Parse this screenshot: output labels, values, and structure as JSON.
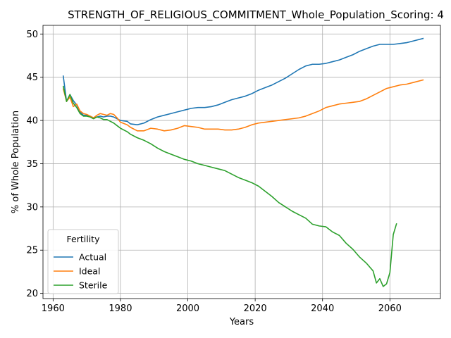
{
  "chart_data": {
    "type": "line",
    "title": "STRENGTH_OF_RELIGIOUS_COMMITMENT_Whole_Population_Scoring: 4",
    "xlabel": "Years",
    "ylabel": "% of Whole Population",
    "xlim": [
      1957,
      2075
    ],
    "ylim": [
      19.4,
      51.0
    ],
    "xticks": [
      1960,
      1980,
      2000,
      2020,
      2040,
      2060
    ],
    "yticks": [
      20,
      25,
      30,
      35,
      40,
      45,
      50
    ],
    "grid": true,
    "legend": {
      "title": "Fertility",
      "placement": "lower-left"
    },
    "series": [
      {
        "name": "Actual",
        "color": "#1f77b4",
        "points": [
          [
            1963,
            45.2
          ],
          [
            1964,
            42.2
          ],
          [
            1965,
            43.0
          ],
          [
            1966,
            42.3
          ],
          [
            1967,
            41.8
          ],
          [
            1968,
            41.0
          ],
          [
            1969,
            40.6
          ],
          [
            1970,
            40.6
          ],
          [
            1971,
            40.5
          ],
          [
            1972,
            40.3
          ],
          [
            1973,
            40.4
          ],
          [
            1974,
            40.5
          ],
          [
            1975,
            40.4
          ],
          [
            1976,
            40.5
          ],
          [
            1977,
            40.5
          ],
          [
            1978,
            40.4
          ],
          [
            1979,
            40.2
          ],
          [
            1980,
            40.0
          ],
          [
            1982,
            39.9
          ],
          [
            1983,
            39.6
          ],
          [
            1985,
            39.5
          ],
          [
            1987,
            39.7
          ],
          [
            1989,
            40.1
          ],
          [
            1991,
            40.4
          ],
          [
            1993,
            40.6
          ],
          [
            1995,
            40.8
          ],
          [
            1997,
            41.0
          ],
          [
            1999,
            41.2
          ],
          [
            2001,
            41.4
          ],
          [
            2003,
            41.5
          ],
          [
            2005,
            41.5
          ],
          [
            2007,
            41.6
          ],
          [
            2009,
            41.8
          ],
          [
            2011,
            42.1
          ],
          [
            2013,
            42.4
          ],
          [
            2015,
            42.6
          ],
          [
            2017,
            42.8
          ],
          [
            2019,
            43.1
          ],
          [
            2021,
            43.5
          ],
          [
            2023,
            43.8
          ],
          [
            2025,
            44.1
          ],
          [
            2027,
            44.5
          ],
          [
            2029,
            44.9
          ],
          [
            2031,
            45.4
          ],
          [
            2033,
            45.9
          ],
          [
            2035,
            46.3
          ],
          [
            2037,
            46.5
          ],
          [
            2039,
            46.5
          ],
          [
            2041,
            46.6
          ],
          [
            2043,
            46.8
          ],
          [
            2045,
            47.0
          ],
          [
            2047,
            47.3
          ],
          [
            2049,
            47.6
          ],
          [
            2051,
            48.0
          ],
          [
            2053,
            48.3
          ],
          [
            2055,
            48.6
          ],
          [
            2057,
            48.8
          ],
          [
            2059,
            48.8
          ],
          [
            2061,
            48.8
          ],
          [
            2063,
            48.9
          ],
          [
            2065,
            49.0
          ],
          [
            2067,
            49.2
          ],
          [
            2070,
            49.5
          ]
        ]
      },
      {
        "name": "Ideal",
        "color": "#ff7f0e",
        "points": [
          [
            1963,
            43.7
          ],
          [
            1964,
            42.2
          ],
          [
            1965,
            42.7
          ],
          [
            1966,
            41.6
          ],
          [
            1967,
            41.9
          ],
          [
            1968,
            41.1
          ],
          [
            1969,
            40.8
          ],
          [
            1970,
            40.7
          ],
          [
            1971,
            40.5
          ],
          [
            1972,
            40.3
          ],
          [
            1973,
            40.6
          ],
          [
            1974,
            40.8
          ],
          [
            1975,
            40.7
          ],
          [
            1976,
            40.6
          ],
          [
            1977,
            40.8
          ],
          [
            1978,
            40.7
          ],
          [
            1979,
            40.3
          ],
          [
            1980,
            39.8
          ],
          [
            1982,
            39.5
          ],
          [
            1983,
            39.2
          ],
          [
            1985,
            38.8
          ],
          [
            1987,
            38.8
          ],
          [
            1989,
            39.1
          ],
          [
            1991,
            39.0
          ],
          [
            1993,
            38.8
          ],
          [
            1995,
            38.9
          ],
          [
            1997,
            39.1
          ],
          [
            1999,
            39.4
          ],
          [
            2001,
            39.3
          ],
          [
            2003,
            39.2
          ],
          [
            2005,
            39.0
          ],
          [
            2007,
            39.0
          ],
          [
            2009,
            39.0
          ],
          [
            2011,
            38.9
          ],
          [
            2013,
            38.9
          ],
          [
            2015,
            39.0
          ],
          [
            2017,
            39.2
          ],
          [
            2019,
            39.5
          ],
          [
            2021,
            39.7
          ],
          [
            2023,
            39.8
          ],
          [
            2025,
            39.9
          ],
          [
            2027,
            40.0
          ],
          [
            2029,
            40.1
          ],
          [
            2031,
            40.2
          ],
          [
            2033,
            40.3
          ],
          [
            2035,
            40.5
          ],
          [
            2037,
            40.8
          ],
          [
            2039,
            41.1
          ],
          [
            2041,
            41.5
          ],
          [
            2043,
            41.7
          ],
          [
            2045,
            41.9
          ],
          [
            2047,
            42.0
          ],
          [
            2049,
            42.1
          ],
          [
            2051,
            42.2
          ],
          [
            2053,
            42.5
          ],
          [
            2055,
            42.9
          ],
          [
            2057,
            43.3
          ],
          [
            2059,
            43.7
          ],
          [
            2061,
            43.9
          ],
          [
            2063,
            44.1
          ],
          [
            2065,
            44.2
          ],
          [
            2067,
            44.4
          ],
          [
            2070,
            44.7
          ]
        ]
      },
      {
        "name": "Sterile",
        "color": "#2ca02c",
        "points": [
          [
            1963,
            44.0
          ],
          [
            1964,
            42.2
          ],
          [
            1965,
            43.0
          ],
          [
            1966,
            42.0
          ],
          [
            1967,
            41.5
          ],
          [
            1968,
            40.8
          ],
          [
            1969,
            40.5
          ],
          [
            1970,
            40.5
          ],
          [
            1971,
            40.4
          ],
          [
            1972,
            40.2
          ],
          [
            1973,
            40.4
          ],
          [
            1974,
            40.3
          ],
          [
            1975,
            40.1
          ],
          [
            1976,
            40.1
          ],
          [
            1977,
            39.9
          ],
          [
            1978,
            39.7
          ],
          [
            1979,
            39.4
          ],
          [
            1980,
            39.1
          ],
          [
            1982,
            38.7
          ],
          [
            1983,
            38.4
          ],
          [
            1985,
            38.0
          ],
          [
            1987,
            37.7
          ],
          [
            1989,
            37.3
          ],
          [
            1991,
            36.8
          ],
          [
            1993,
            36.4
          ],
          [
            1995,
            36.1
          ],
          [
            1997,
            35.8
          ],
          [
            1999,
            35.5
          ],
          [
            2001,
            35.3
          ],
          [
            2003,
            35.0
          ],
          [
            2005,
            34.8
          ],
          [
            2007,
            34.6
          ],
          [
            2009,
            34.4
          ],
          [
            2011,
            34.2
          ],
          [
            2013,
            33.8
          ],
          [
            2015,
            33.4
          ],
          [
            2017,
            33.1
          ],
          [
            2019,
            32.8
          ],
          [
            2021,
            32.4
          ],
          [
            2023,
            31.8
          ],
          [
            2025,
            31.2
          ],
          [
            2027,
            30.5
          ],
          [
            2029,
            30.0
          ],
          [
            2031,
            29.5
          ],
          [
            2033,
            29.1
          ],
          [
            2035,
            28.7
          ],
          [
            2037,
            28.0
          ],
          [
            2039,
            27.8
          ],
          [
            2041,
            27.7
          ],
          [
            2043,
            27.1
          ],
          [
            2045,
            26.7
          ],
          [
            2047,
            25.8
          ],
          [
            2049,
            25.1
          ],
          [
            2051,
            24.2
          ],
          [
            2053,
            23.5
          ],
          [
            2055,
            22.6
          ],
          [
            2056,
            21.2
          ],
          [
            2057,
            21.7
          ],
          [
            2058,
            20.8
          ],
          [
            2059,
            21.1
          ],
          [
            2060,
            22.4
          ],
          [
            2061,
            26.8
          ],
          [
            2062,
            28.1
          ]
        ]
      }
    ]
  }
}
